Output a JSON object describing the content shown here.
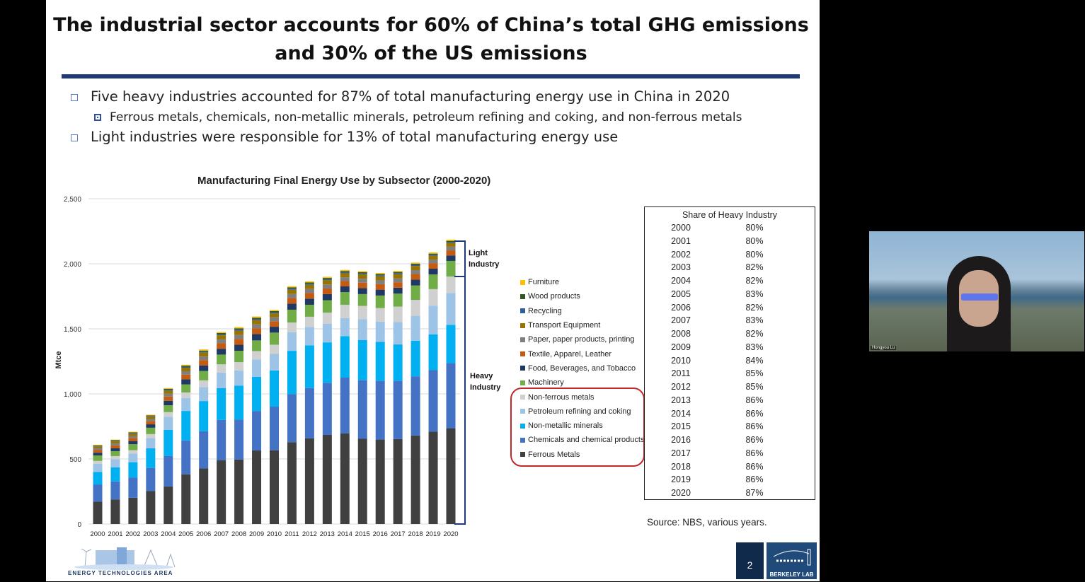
{
  "slide": {
    "title_line1": "The industrial sector accounts for 60% of China’s total GHG emissions",
    "title_line2": "and 30% of the US emissions",
    "bullets": [
      "Five heavy industries accounted for 87% of total manufacturing energy use in China in 2020",
      "Ferrous metals, chemicals, non-metallic minerals, petroleum refining and coking, and non-ferrous metals",
      "Light industries were responsible for 13% of total manufacturing energy use"
    ],
    "bracket_light": "Light Industry",
    "bracket_heavy": "Heavy Industry",
    "source": "Source: NBS, various years.",
    "page_number": "2",
    "logo_left": "Energy Technologies Area",
    "logo_right": "BERKELEY LAB",
    "highlight_color": "#c0282a"
  },
  "table": {
    "header": "Share of Heavy Industry",
    "rows": [
      [
        "2000",
        "80%"
      ],
      [
        "2001",
        "80%"
      ],
      [
        "2002",
        "80%"
      ],
      [
        "2003",
        "82%"
      ],
      [
        "2004",
        "82%"
      ],
      [
        "2005",
        "83%"
      ],
      [
        "2006",
        "82%"
      ],
      [
        "2007",
        "83%"
      ],
      [
        "2008",
        "82%"
      ],
      [
        "2009",
        "83%"
      ],
      [
        "2010",
        "84%"
      ],
      [
        "2011",
        "85%"
      ],
      [
        "2012",
        "85%"
      ],
      [
        "2013",
        "86%"
      ],
      [
        "2014",
        "86%"
      ],
      [
        "2015",
        "86%"
      ],
      [
        "2016",
        "86%"
      ],
      [
        "2017",
        "86%"
      ],
      [
        "2018",
        "86%"
      ],
      [
        "2019",
        "86%"
      ],
      [
        "2020",
        "87%"
      ]
    ]
  },
  "webcam": {
    "participant_name": "Hongyou Lu"
  },
  "chart_data": {
    "type": "bar",
    "stacked": true,
    "title": "Manufacturing Final Energy Use by Subsector (2000-2020)",
    "ylabel": "Mtce",
    "xlabel": "",
    "ylim": [
      0,
      2500
    ],
    "yticks": [
      "0",
      "500",
      "1,000",
      "1,500",
      "2,000",
      "2,500"
    ],
    "grid": true,
    "legend_position": "right",
    "categories": [
      "2000",
      "2001",
      "2002",
      "2003",
      "2004",
      "2005",
      "2006",
      "2007",
      "2008",
      "2009",
      "2010",
      "2011",
      "2012",
      "2013",
      "2014",
      "2015",
      "2016",
      "2017",
      "2018",
      "2019",
      "2020"
    ],
    "series": [
      {
        "name": "Ferrous Metals",
        "color": "#404040",
        "values": [
          171,
          189,
          202,
          253,
          289,
          382,
          427,
          489,
          495,
          565,
          567,
          629,
          658,
          685,
          696,
          655,
          649,
          653,
          680,
          709,
          736
        ]
      },
      {
        "name": "Chemicals and chemical products",
        "color": "#4472c4",
        "values": [
          133,
          138,
          156,
          178,
          233,
          260,
          286,
          311,
          307,
          304,
          335,
          369,
          387,
          400,
          429,
          450,
          451,
          447,
          455,
          473,
          500
        ]
      },
      {
        "name": "Non-metallic minerals",
        "color": "#00b0f0",
        "values": [
          96,
          108,
          117,
          151,
          202,
          227,
          232,
          245,
          262,
          262,
          278,
          333,
          328,
          311,
          319,
          308,
          300,
          280,
          274,
          276,
          295
        ]
      },
      {
        "name": "Petroleum refining and coking",
        "color": "#9dc3e6",
        "values": [
          62,
          63,
          67,
          78,
          100,
          100,
          108,
          119,
          116,
          133,
          127,
          142,
          142,
          144,
          138,
          162,
          156,
          173,
          191,
          220,
          245
        ]
      },
      {
        "name": "Non-ferrous metals",
        "color": "#d0d0d0",
        "values": [
          23,
          24,
          25,
          31,
          36,
          42,
          51,
          63,
          64,
          65,
          71,
          76,
          78,
          85,
          103,
          101,
          104,
          118,
          122,
          127,
          126
        ]
      },
      {
        "name": "Machinery",
        "color": "#70ad47",
        "values": [
          42,
          38,
          46,
          49,
          53,
          62,
          72,
          75,
          87,
          82,
          93,
          98,
          92,
          95,
          97,
          91,
          96,
          100,
          111,
          113,
          120
        ]
      },
      {
        "name": "Food, Beverages, and Tobacco",
        "color": "#203864",
        "values": [
          21,
          23,
          25,
          26,
          34,
          39,
          43,
          45,
          47,
          48,
          45,
          47,
          47,
          47,
          44,
          46,
          45,
          45,
          46,
          44,
          42
        ]
      },
      {
        "name": "Textile, Apparel, Leather",
        "color": "#c55a11",
        "values": [
          20,
          21,
          23,
          24,
          32,
          36,
          40,
          42,
          44,
          44,
          42,
          43,
          43,
          43,
          41,
          42,
          42,
          42,
          42,
          41,
          39
        ]
      },
      {
        "name": "Paper, paper products, printing",
        "color": "#7f7f7f",
        "values": [
          14,
          15,
          16,
          17,
          22,
          26,
          28,
          30,
          31,
          31,
          30,
          31,
          31,
          31,
          29,
          30,
          29,
          30,
          30,
          29,
          28
        ]
      },
      {
        "name": "Transport Equipment",
        "color": "#997300",
        "values": [
          15,
          16,
          17,
          18,
          24,
          27,
          30,
          31,
          33,
          33,
          31,
          32,
          32,
          32,
          31,
          32,
          31,
          31,
          32,
          30,
          29
        ]
      },
      {
        "name": "Recycling",
        "color": "#2e5f9a",
        "values": [
          4,
          4,
          5,
          5,
          7,
          8,
          8,
          9,
          9,
          9,
          9,
          9,
          9,
          9,
          9,
          9,
          9,
          9,
          9,
          8,
          8
        ]
      },
      {
        "name": "Wood products",
        "color": "#375623",
        "values": [
          4,
          5,
          5,
          5,
          7,
          8,
          8,
          9,
          9,
          9,
          9,
          9,
          9,
          9,
          9,
          9,
          9,
          9,
          9,
          8,
          8
        ]
      },
      {
        "name": "Furniture",
        "color": "#ffc000",
        "values": [
          4,
          5,
          5,
          5,
          6,
          7,
          9,
          8,
          9,
          10,
          8,
          9,
          9,
          9,
          8,
          9,
          8,
          8,
          8,
          9,
          9
        ]
      }
    ]
  }
}
